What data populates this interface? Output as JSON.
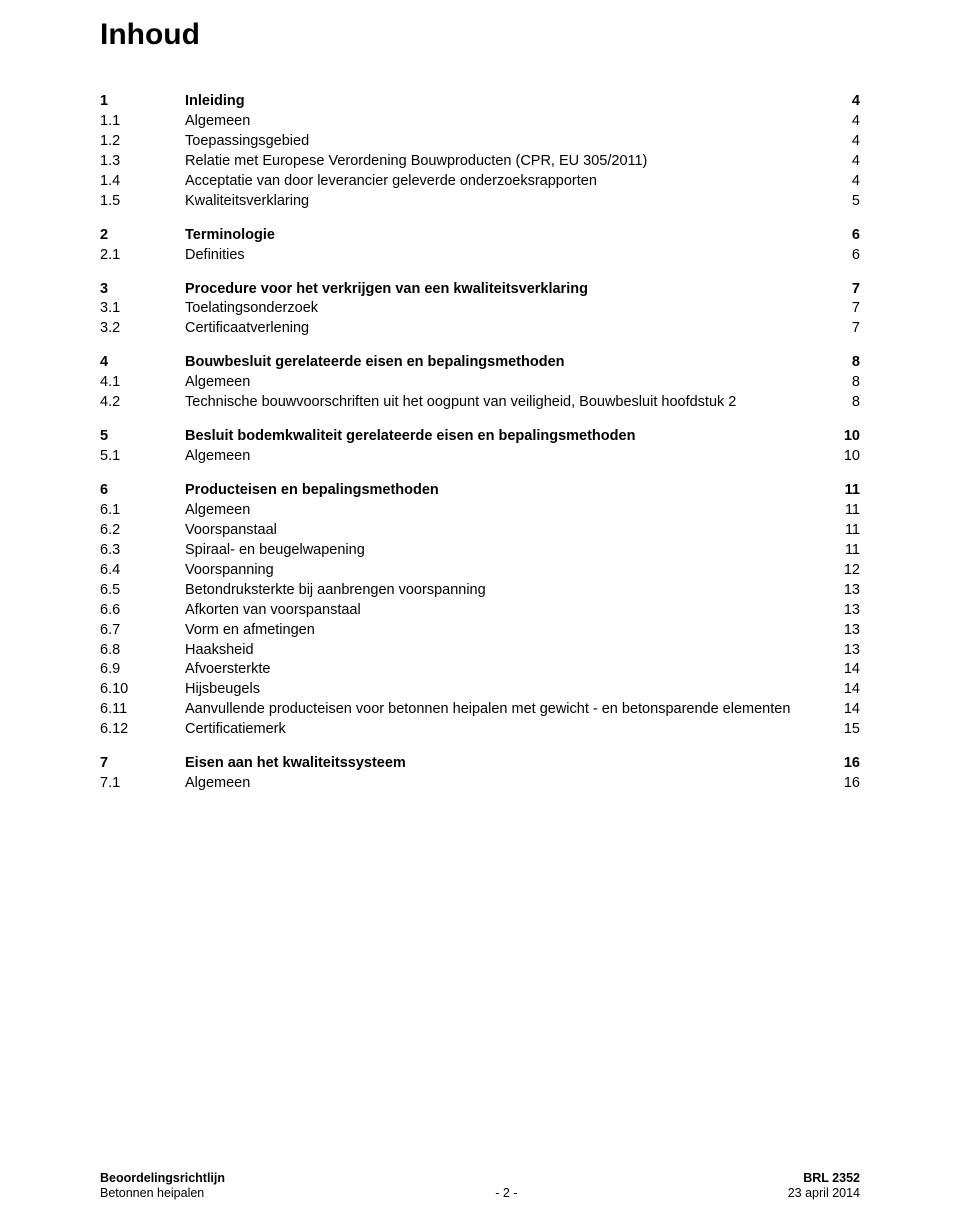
{
  "page_title": "Inhoud",
  "toc": [
    {
      "group": [
        {
          "num": "1",
          "title": "Inleiding",
          "page": "4",
          "bold": true
        },
        {
          "num": "1.1",
          "title": "Algemeen",
          "page": "4"
        },
        {
          "num": "1.2",
          "title": "Toepassingsgebied",
          "page": "4"
        },
        {
          "num": "1.3",
          "title": "Relatie met Europese Verordening Bouwproducten (CPR, EU 305/2011)",
          "page": "4"
        },
        {
          "num": "1.4",
          "title": "Acceptatie van door leverancier geleverde onderzoeksrapporten",
          "page": "4"
        },
        {
          "num": "1.5",
          "title": "Kwaliteitsverklaring",
          "page": "5"
        }
      ]
    },
    {
      "group": [
        {
          "num": "2",
          "title": "Terminologie",
          "page": "6",
          "bold": true
        },
        {
          "num": "2.1",
          "title": "Definities",
          "page": "6"
        }
      ]
    },
    {
      "group": [
        {
          "num": "3",
          "title": "Procedure voor het verkrijgen van een kwaliteitsverklaring",
          "page": "7",
          "bold": true
        },
        {
          "num": "3.1",
          "title": "Toelatingsonderzoek",
          "page": "7"
        },
        {
          "num": "3.2",
          "title": "Certificaatverlening",
          "page": "7"
        }
      ]
    },
    {
      "group": [
        {
          "num": "4",
          "title": "Bouwbesluit gerelateerde eisen en bepalingsmethoden",
          "page": "8",
          "bold": true
        },
        {
          "num": "4.1",
          "title": "Algemeen",
          "page": "8"
        },
        {
          "num": "4.2",
          "title": "Technische bouwvoorschriften uit het oogpunt van veiligheid, Bouwbesluit hoofdstuk 2",
          "page": "8"
        }
      ]
    },
    {
      "group": [
        {
          "num": "5",
          "title": "Besluit bodemkwaliteit gerelateerde eisen en bepalingsmethoden",
          "page": "10",
          "bold": true
        },
        {
          "num": "5.1",
          "title": "Algemeen",
          "page": "10"
        }
      ]
    },
    {
      "group": [
        {
          "num": "6",
          "title": "Producteisen en bepalingsmethoden",
          "page": "11",
          "bold": true
        },
        {
          "num": "6.1",
          "title": "Algemeen",
          "page": "11"
        },
        {
          "num": "6.2",
          "title": "Voorspanstaal",
          "page": "11"
        },
        {
          "num": "6.3",
          "title": "Spiraal- en beugelwapening",
          "page": "11"
        },
        {
          "num": "6.4",
          "title": "Voorspanning",
          "page": "12"
        },
        {
          "num": "6.5",
          "title": "Betondruksterkte bij aanbrengen voorspanning",
          "page": "13"
        },
        {
          "num": "6.6",
          "title": "Afkorten van voorspanstaal",
          "page": "13"
        },
        {
          "num": "6.7",
          "title": "Vorm en afmetingen",
          "page": "13"
        },
        {
          "num": "6.8",
          "title": "Haaksheid",
          "page": "13"
        },
        {
          "num": "6.9",
          "title": "Afvoersterkte",
          "page": "14"
        },
        {
          "num": "6.10",
          "title": "Hijsbeugels",
          "page": "14"
        },
        {
          "num": "6.11",
          "title": "Aanvullende producteisen voor betonnen heipalen met gewicht - en betonsparende elementen",
          "page": "14"
        },
        {
          "num": "6.12",
          "title": "Certificatiemerk",
          "page": "15"
        }
      ]
    },
    {
      "group": [
        {
          "num": "7",
          "title": "Eisen aan het kwaliteitssysteem",
          "page": "16",
          "bold": true
        },
        {
          "num": "7.1",
          "title": "Algemeen",
          "page": "16"
        }
      ]
    }
  ],
  "footer": {
    "left_line1": "Beoordelingsrichtlijn",
    "left_line2": "Betonnen heipalen",
    "center": "- 2 -",
    "right_line1": "BRL 2352",
    "right_line2": "23 april 2014"
  }
}
